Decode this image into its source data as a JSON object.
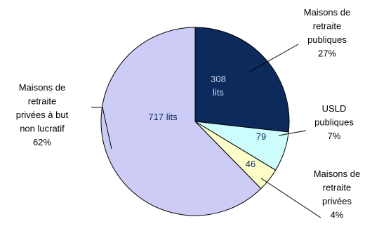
{
  "chart_data": {
    "type": "pie",
    "title": "",
    "unit_suffix": " lits",
    "slices": [
      {
        "label_lines": [
          "Maisons de",
          "retraite",
          "publiques"
        ],
        "percent_label": "27%",
        "value": 308,
        "value_lines": [
          "308",
          "lits"
        ],
        "color": "#0c2a5c",
        "value_text_color": "#c6d5ea"
      },
      {
        "label_lines": [
          "USLD",
          "publiques"
        ],
        "percent_label": "7%",
        "value": 79,
        "value_lines": [
          "79"
        ],
        "color": "#ccfcfc",
        "value_text_color": "#0c2a5c"
      },
      {
        "label_lines": [
          "Maisons de",
          "retraite",
          "privées"
        ],
        "percent_label": "4%",
        "value": 46,
        "value_lines": [
          "46"
        ],
        "color": "#fcfcc8",
        "value_text_color": "#0c2a5c"
      },
      {
        "label_lines": [
          "Maisons de",
          "retraite",
          "privées à but",
          "non lucratif"
        ],
        "percent_label": "62%",
        "value": 717,
        "value_lines": [
          "717 lits"
        ],
        "color": "#ccccf6",
        "value_text_color": "#0c2a5c"
      }
    ]
  }
}
